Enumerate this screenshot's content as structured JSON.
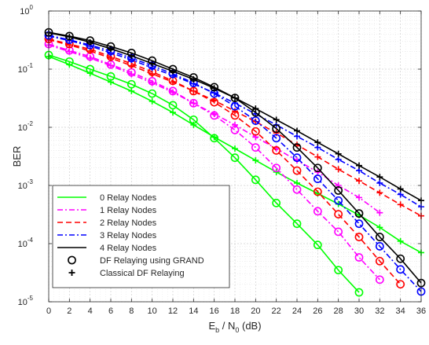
{
  "chart_data": {
    "type": "line",
    "title": "",
    "xlabel": {
      "base": "E",
      "sub1": "b",
      "mid": " / N",
      "sub2": "0",
      "tail": " (dB)"
    },
    "ylabel": "BER",
    "xlim": [
      0,
      36
    ],
    "ylim": [
      1e-05,
      1
    ],
    "yscale": "log",
    "x_ticks": [
      "0",
      "2",
      "4",
      "6",
      "8",
      "10",
      "12",
      "14",
      "16",
      "18",
      "20",
      "22",
      "24",
      "26",
      "28",
      "30",
      "32",
      "34",
      "36"
    ],
    "y_ticks": [
      {
        "base": "10",
        "exp": "0",
        "value": 1
      },
      {
        "base": "10",
        "exp": "-1",
        "value": 0.1
      },
      {
        "base": "10",
        "exp": "-2",
        "value": 0.01
      },
      {
        "base": "10",
        "exp": "-3",
        "value": 0.001
      },
      {
        "base": "10",
        "exp": "-4",
        "value": 0.0001
      },
      {
        "base": "10",
        "exp": "-5",
        "value": 1e-05
      }
    ],
    "grid": true,
    "legend_position": "bottom-left",
    "series": [
      {
        "name": "0 Relay Nodes",
        "color": "#00ff00",
        "dash": "solid",
        "grand": {
          "x": [
            0,
            2,
            4,
            6,
            8,
            10,
            12,
            14,
            16,
            18,
            20,
            22,
            24,
            26,
            28,
            30
          ],
          "y": [
            0.175,
            0.135,
            0.1,
            0.075,
            0.055,
            0.038,
            0.024,
            0.0135,
            0.0065,
            0.003,
            0.00125,
            0.0005,
            0.00022,
            9.5e-05,
            3.5e-05,
            1.45e-05
          ]
        },
        "classical": {
          "x": [
            0,
            2,
            4,
            6,
            8,
            10,
            12,
            14,
            16,
            18,
            20,
            22,
            24,
            26,
            28,
            30,
            32,
            34,
            36
          ],
          "y": [
            0.165,
            0.12,
            0.085,
            0.06,
            0.042,
            0.028,
            0.018,
            0.011,
            0.0068,
            0.0043,
            0.0027,
            0.0017,
            0.0011,
            0.00073,
            0.00048,
            0.00031,
            0.00019,
            0.00011,
            7e-05
          ]
        }
      },
      {
        "name": "1 Relay Nodes",
        "color": "#ff00ff",
        "dash": "dashdot",
        "grand": {
          "x": [
            0,
            2,
            4,
            6,
            8,
            10,
            12,
            14,
            16,
            18,
            20,
            22,
            24,
            26,
            28,
            30,
            32
          ],
          "y": [
            0.27,
            0.21,
            0.165,
            0.12,
            0.088,
            0.062,
            0.042,
            0.026,
            0.016,
            0.009,
            0.0045,
            0.002,
            0.00085,
            0.00036,
            0.00016,
            5.8e-05,
            2.4e-05
          ]
        },
        "classical": {
          "x": [
            0,
            2,
            4,
            6,
            8,
            10,
            12,
            14,
            16,
            18,
            20,
            22,
            24,
            26,
            28,
            30,
            32
          ],
          "y": [
            0.26,
            0.2,
            0.155,
            0.115,
            0.082,
            0.058,
            0.04,
            0.026,
            0.017,
            0.011,
            0.0068,
            0.0043,
            0.0027,
            0.0017,
            0.001,
            0.00062,
            0.00034
          ]
        }
      },
      {
        "name": "2 Relay Nodes",
        "color": "#ff0000",
        "dash": "dash",
        "grand": {
          "x": [
            0,
            2,
            4,
            6,
            8,
            10,
            12,
            14,
            16,
            18,
            20,
            22,
            24,
            26,
            28,
            30,
            32,
            34
          ],
          "y": [
            0.33,
            0.27,
            0.22,
            0.165,
            0.125,
            0.09,
            0.063,
            0.042,
            0.027,
            0.016,
            0.0085,
            0.004,
            0.0018,
            0.00078,
            0.00032,
            0.00013,
            5e-05,
            2e-05
          ]
        },
        "classical": {
          "x": [
            0,
            2,
            4,
            6,
            8,
            10,
            12,
            14,
            16,
            18,
            20,
            22,
            24,
            26,
            28,
            30,
            32,
            34,
            36
          ],
          "y": [
            0.32,
            0.26,
            0.205,
            0.155,
            0.115,
            0.083,
            0.06,
            0.042,
            0.029,
            0.019,
            0.0125,
            0.008,
            0.005,
            0.0031,
            0.0019,
            0.0012,
            0.00075,
            0.00047,
            0.0003
          ]
        }
      },
      {
        "name": "3 Relay Nodes",
        "color": "#0000ff",
        "dash": "dashdot",
        "grand": {
          "x": [
            0,
            2,
            4,
            6,
            8,
            10,
            12,
            14,
            16,
            18,
            20,
            22,
            24,
            26,
            28,
            30,
            32,
            34,
            36
          ],
          "y": [
            0.38,
            0.32,
            0.26,
            0.205,
            0.155,
            0.115,
            0.083,
            0.058,
            0.038,
            0.023,
            0.013,
            0.0065,
            0.003,
            0.0013,
            0.00055,
            0.00022,
            9e-05,
            3.6e-05,
            1.5e-05
          ]
        },
        "classical": {
          "x": [
            0,
            2,
            4,
            6,
            8,
            10,
            12,
            14,
            16,
            18,
            20,
            22,
            24,
            26,
            28,
            30,
            32,
            34,
            36
          ],
          "y": [
            0.37,
            0.31,
            0.25,
            0.19,
            0.145,
            0.105,
            0.078,
            0.056,
            0.039,
            0.026,
            0.017,
            0.011,
            0.007,
            0.0045,
            0.0028,
            0.0018,
            0.0011,
            0.0007,
            0.00043
          ]
        }
      },
      {
        "name": "4 Relay Nodes",
        "color": "#000000",
        "dash": "solid",
        "grand": {
          "x": [
            0,
            2,
            4,
            6,
            8,
            10,
            12,
            14,
            16,
            18,
            20,
            22,
            24,
            26,
            28,
            30,
            32,
            34,
            36
          ],
          "y": [
            0.43,
            0.37,
            0.31,
            0.245,
            0.19,
            0.14,
            0.1,
            0.072,
            0.049,
            0.032,
            0.018,
            0.0095,
            0.0045,
            0.002,
            0.00082,
            0.00033,
            0.00013,
            5.5e-05,
            2.1e-05
          ]
        },
        "classical": {
          "x": [
            0,
            2,
            4,
            6,
            8,
            10,
            12,
            14,
            16,
            18,
            20,
            22,
            24,
            26,
            28,
            30,
            32,
            34,
            36
          ],
          "y": [
            0.42,
            0.36,
            0.29,
            0.225,
            0.17,
            0.125,
            0.092,
            0.067,
            0.047,
            0.032,
            0.021,
            0.0135,
            0.0087,
            0.0055,
            0.0035,
            0.0022,
            0.0014,
            0.00087,
            0.00055
          ]
        }
      }
    ],
    "marker_legend": [
      {
        "name": "DF Relaying using GRAND",
        "marker": "circle"
      },
      {
        "name": "Classical DF Relaying",
        "marker": "plus"
      }
    ]
  }
}
